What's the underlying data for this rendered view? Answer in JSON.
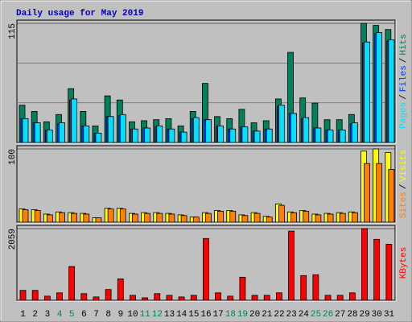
{
  "chart_data": [
    {
      "type": "bar",
      "title": "Daily usage for May 2019",
      "legend_separator": "/",
      "ylim": [
        0,
        115
      ],
      "yticks": [
        115
      ],
      "series": [
        {
          "name": "Hits",
          "color": "#00805c",
          "values": [
            36,
            30,
            20,
            27,
            52,
            30,
            16,
            45,
            41,
            20,
            21,
            22,
            23,
            16,
            30,
            57,
            25,
            23,
            32,
            19,
            21,
            42,
            87,
            43,
            38,
            22,
            22,
            27,
            115,
            113,
            109
          ]
        },
        {
          "name": "Files",
          "color": "#0040ff",
          "values": [
            23,
            19,
            12,
            18,
            41,
            16,
            9,
            25,
            26,
            13,
            14,
            15,
            13,
            10,
            23,
            22,
            16,
            13,
            15,
            11,
            13,
            35,
            28,
            23,
            14,
            12,
            12,
            18,
            96,
            105,
            98
          ]
        },
        {
          "name": "Pages",
          "color": "#00e0ff",
          "values": [
            23,
            19,
            12,
            19,
            42,
            16,
            9,
            25,
            27,
            13,
            14,
            16,
            13,
            10,
            24,
            22,
            16,
            13,
            15,
            11,
            13,
            36,
            28,
            24,
            14,
            12,
            12,
            19,
            97,
            106,
            99
          ]
        }
      ]
    },
    {
      "type": "bar",
      "legend_separator": "/",
      "ylim": [
        0,
        100
      ],
      "yticks": [
        100
      ],
      "series": [
        {
          "name": "Visits",
          "color": "#ffff00",
          "values": [
            18,
            17,
            11,
            14,
            13,
            12,
            6,
            19,
            19,
            12,
            13,
            13,
            12,
            10,
            7,
            13,
            16,
            16,
            10,
            13,
            8,
            25,
            14,
            16,
            11,
            12,
            13,
            14,
            97,
            100,
            95
          ]
        },
        {
          "name": "Sites",
          "color": "#ff8000",
          "values": [
            17,
            16,
            10,
            13,
            12,
            11,
            6,
            18,
            18,
            11,
            12,
            12,
            11,
            9,
            7,
            12,
            15,
            15,
            9,
            12,
            7,
            23,
            13,
            15,
            10,
            11,
            12,
            13,
            80,
            80,
            72
          ]
        }
      ]
    },
    {
      "type": "bar",
      "ylim": [
        0,
        2059
      ],
      "yticks": [
        2059
      ],
      "categories": [
        "1",
        "2",
        "3",
        "4",
        "5",
        "6",
        "7",
        "8",
        "9",
        "10",
        "11",
        "12",
        "13",
        "14",
        "15",
        "16",
        "17",
        "18",
        "19",
        "20",
        "21",
        "22",
        "23",
        "24",
        "25",
        "26",
        "27",
        "28",
        "29",
        "30",
        "31"
      ],
      "label_colors": [
        "#000",
        "#000",
        "#000",
        "#00805c",
        "#00805c",
        "#000",
        "#000",
        "#000",
        "#000",
        "#000",
        "#00805c",
        "#00805c",
        "#000",
        "#000",
        "#000",
        "#000",
        "#000",
        "#00805c",
        "#00805c",
        "#000",
        "#000",
        "#000",
        "#000",
        "#000",
        "#00805c",
        "#00805c",
        "#000",
        "#000",
        "#000",
        "#000",
        "#000"
      ],
      "series": [
        {
          "name": "KBytes",
          "color": "#ff0000",
          "values": [
            284,
            284,
            118,
            213,
            970,
            190,
            95,
            308,
            615,
            142,
            71,
            190,
            142,
            95,
            142,
            1775,
            213,
            118,
            663,
            142,
            142,
            213,
            1988,
            710,
            734,
            142,
            142,
            213,
            2059,
            1751,
            1609
          ]
        }
      ]
    }
  ]
}
